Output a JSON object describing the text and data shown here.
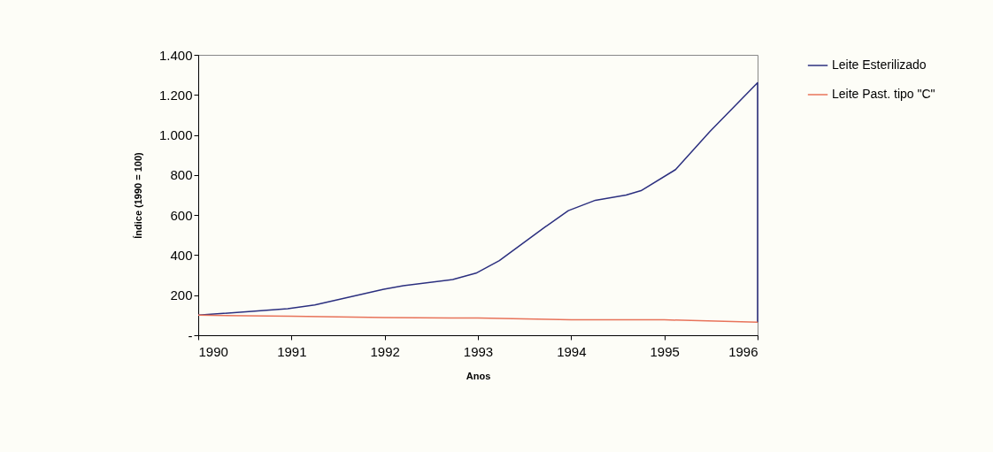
{
  "chart_data": {
    "type": "line",
    "xlabel": "Anos",
    "ylabel": "Índice (1990 = 100)",
    "xlim": [
      1990,
      1996
    ],
    "xticks": [
      1990,
      1991,
      1992,
      1993,
      1994,
      1995,
      1996
    ],
    "ylim": [
      0,
      1400
    ],
    "yticks": [
      {
        "value": 0,
        "label": "-"
      },
      200,
      400,
      600,
      800,
      {
        "value": 1000,
        "label": "1.000"
      },
      {
        "value": 1200,
        "label": "1.200"
      },
      {
        "value": 1400,
        "label": "1.400"
      }
    ],
    "series": [
      {
        "name": "Leite Esterilizado",
        "color": "#2b2f7f",
        "x": [
          1990,
          1990.96,
          1991.25,
          1991.99,
          1992.2,
          1992.73,
          1992.98,
          1993.23,
          1993.72,
          1993.97,
          1994.26,
          1994.59,
          1994.75,
          1995.12,
          1995.49,
          1996,
          1996
        ],
        "values": [
          100,
          132,
          151,
          230,
          247,
          278,
          310,
          373,
          540,
          622,
          674,
          700,
          722,
          827,
          1018,
          1261,
          65
        ]
      },
      {
        "name": "Leite Past. tipo \"C\"",
        "color": "#e8735a",
        "x": [
          1990,
          1991,
          1992,
          1993,
          1994,
          1995,
          1996
        ],
        "values": [
          100,
          95,
          88,
          86,
          77,
          77,
          65
        ]
      }
    ],
    "legend": "right",
    "grid": false,
    "marker": "none",
    "line_style": "solid"
  }
}
